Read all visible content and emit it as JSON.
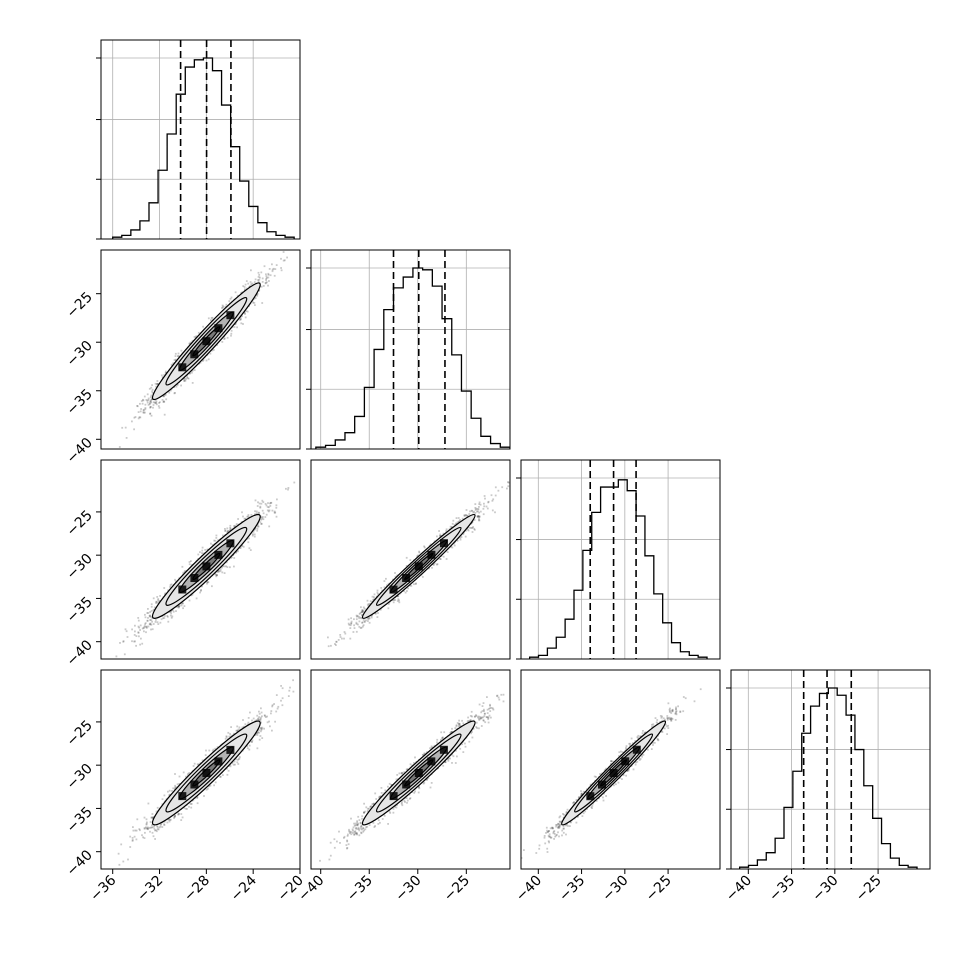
{
  "chart_data": {
    "type": "corner",
    "n_params": 4,
    "labels": [
      "",
      "",
      "",
      ""
    ],
    "ranges": [
      [
        -37,
        -20
      ],
      [
        -41,
        -20.5
      ],
      [
        -42,
        -19
      ],
      [
        -42,
        -19
      ]
    ],
    "xticks": [
      [
        "−36",
        "−32",
        "−28",
        "−24",
        "−20"
      ],
      [
        "−40",
        "−35",
        "−30",
        "−25"
      ],
      [
        "−40",
        "−35",
        "−30",
        "−25"
      ],
      [
        "−40",
        "−35",
        "−30",
        "−25"
      ]
    ],
    "xtick_values": [
      [
        -36,
        -32,
        -28,
        -24,
        -20
      ],
      [
        -40,
        -35,
        -30,
        -25
      ],
      [
        -40,
        -35,
        -30,
        -25
      ],
      [
        -40,
        -35,
        -30,
        -25
      ]
    ],
    "yticks": [
      [],
      [
        "−25",
        "−30",
        "−35",
        "−40"
      ],
      [
        "−25",
        "−30",
        "−35",
        "−40"
      ],
      [
        "−25",
        "−30",
        "−35",
        "−40"
      ]
    ],
    "ytick_values": [
      [],
      [
        -25,
        -30,
        -35,
        -40
      ],
      [
        -25,
        -30,
        -35,
        -40
      ],
      [
        -25,
        -30,
        -35,
        -40
      ]
    ],
    "quantiles": [
      [
        -30.2,
        -27.98,
        -25.9
      ],
      [
        -32.5,
        -29.9,
        -27.2
      ],
      [
        -34.0,
        -31.3,
        -28.7
      ],
      [
        -33.6,
        -30.9,
        -28.1
      ]
    ],
    "histograms": [
      {
        "edges_range": [
          -36,
          -20.5
        ],
        "counts": [
          0.01,
          0.02,
          0.05,
          0.1,
          0.2,
          0.38,
          0.58,
          0.8,
          0.95,
          0.99,
          1.0,
          0.93,
          0.74,
          0.51,
          0.32,
          0.18,
          0.09,
          0.04,
          0.02,
          0.01
        ]
      },
      {
        "edges_range": [
          -40.5,
          -20.5
        ],
        "counts": [
          0.01,
          0.02,
          0.05,
          0.09,
          0.18,
          0.34,
          0.55,
          0.77,
          0.89,
          0.95,
          1.0,
          0.99,
          0.9,
          0.72,
          0.52,
          0.32,
          0.17,
          0.07,
          0.03,
          0.01
        ]
      },
      {
        "edges_range": [
          -41,
          -20.5
        ],
        "counts": [
          0.01,
          0.02,
          0.06,
          0.12,
          0.22,
          0.38,
          0.6,
          0.81,
          0.95,
          0.95,
          0.99,
          0.93,
          0.79,
          0.57,
          0.36,
          0.2,
          0.09,
          0.04,
          0.02,
          0.01
        ]
      },
      {
        "edges_range": [
          -41,
          -20.5
        ],
        "counts": [
          0.01,
          0.02,
          0.05,
          0.09,
          0.17,
          0.34,
          0.54,
          0.75,
          0.9,
          0.97,
          1.0,
          0.96,
          0.85,
          0.66,
          0.46,
          0.28,
          0.14,
          0.06,
          0.02,
          0.01
        ]
      }
    ],
    "joint": [
      {
        "row": 1,
        "col": 0,
        "center": [
          -28.0,
          -29.9
        ],
        "sx": 2.3,
        "sy": 3.0,
        "rho": 0.97
      },
      {
        "row": 2,
        "col": 0,
        "center": [
          -28.0,
          -31.3
        ],
        "sx": 2.3,
        "sy": 3.0,
        "rho": 0.96
      },
      {
        "row": 2,
        "col": 1,
        "center": [
          -29.9,
          -31.3
        ],
        "sx": 2.9,
        "sy": 3.0,
        "rho": 0.98
      },
      {
        "row": 3,
        "col": 0,
        "center": [
          -28.0,
          -30.9
        ],
        "sx": 2.3,
        "sy": 3.0,
        "rho": 0.96
      },
      {
        "row": 3,
        "col": 1,
        "center": [
          -29.9,
          -30.9
        ],
        "sx": 2.9,
        "sy": 3.0,
        "rho": 0.97
      },
      {
        "row": 3,
        "col": 2,
        "center": [
          -31.3,
          -30.9
        ],
        "sx": 3.0,
        "sy": 3.0,
        "rho": 0.98
      }
    ],
    "grid": true,
    "colors": {
      "ink": "#000000",
      "points": "#404040",
      "grid": "#b0b0b0",
      "contour_fills": [
        "#e6e6e6",
        "#b3b3b3",
        "#7a7a7a"
      ]
    }
  }
}
